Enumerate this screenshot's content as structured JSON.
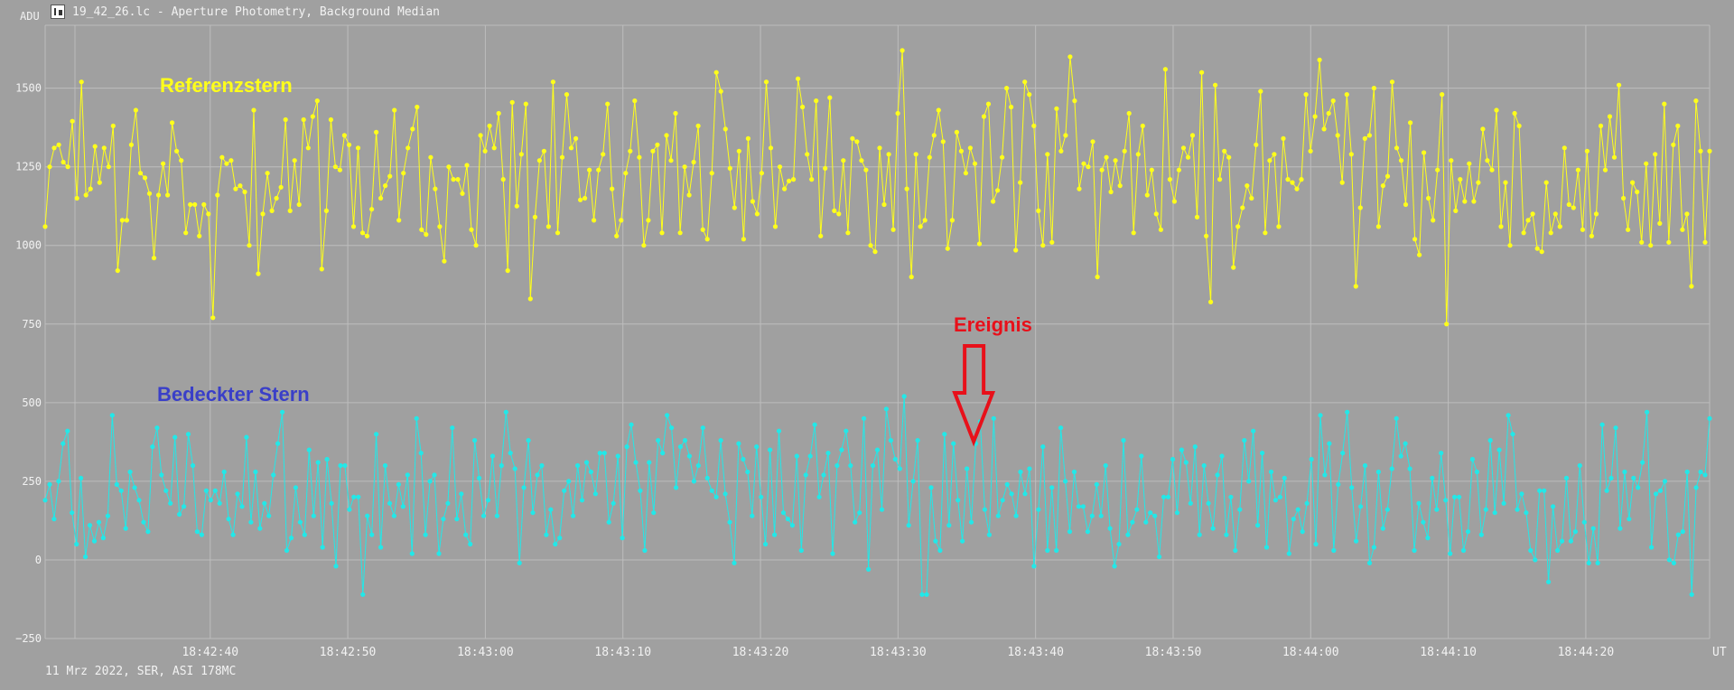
{
  "window": {
    "title": "19_42_26.lc - Aperture Photometry, Background Median",
    "icon": "chart-app-icon"
  },
  "footer": {
    "text": "11 Mrz 2022, SER, ASI 178MC"
  },
  "colors": {
    "background": "#a0a0a0",
    "grid": "#bdbdbd",
    "axis_text": "#f2f2f2",
    "reference_series": "#ffff1a",
    "occulted_series": "#22e8e8",
    "reference_label": "#ffff1a",
    "occulted_label": "#3a3fc8",
    "event": "#e8101a"
  },
  "chart_data": {
    "type": "line",
    "title": "",
    "ylabel": "ADU",
    "xlabel": "UT",
    "ylim": [
      -250,
      1700
    ],
    "yticks": [
      -250,
      0,
      250,
      500,
      750,
      1000,
      1250,
      1500
    ],
    "ytick_labels": [
      "−250",
      "0",
      "250",
      "500",
      "750",
      "1000",
      "1250",
      "1500"
    ],
    "xlim_seconds_from_start": [
      0,
      121
    ],
    "x_start": "18:42:28",
    "xticks": [
      "18:42:40",
      "18:42:50",
      "18:43:00",
      "18:43:10",
      "18:43:20",
      "18:43:30",
      "18:43:40",
      "18:43:50",
      "18:44:00",
      "18:44:10",
      "18:44:20"
    ],
    "grid": true,
    "annotations": [
      {
        "text": "Referenzstern",
        "series": "reference"
      },
      {
        "text": "Bedeckter Stern",
        "series": "occulted"
      },
      {
        "text": "Ereignis",
        "time": "18:43:35.5",
        "type": "down-arrow"
      }
    ],
    "series": [
      {
        "name": "Referenzstern",
        "key": "reference",
        "time_range": [
          "18:42:28",
          "18:44:29"
        ],
        "values": [
          1060,
          1250,
          1310,
          1320,
          1265,
          1250,
          1395,
          1150,
          1520,
          1160,
          1180,
          1315,
          1200,
          1310,
          1250,
          1380,
          920,
          1080,
          1080,
          1320,
          1430,
          1230,
          1215,
          1165,
          960,
          1160,
          1260,
          1160,
          1390,
          1300,
          1270,
          1040,
          1130,
          1130,
          1030,
          1130,
          1100,
          770,
          1160,
          1280,
          1260,
          1270,
          1180,
          1190,
          1170,
          1000,
          1430,
          910,
          1100,
          1230,
          1110,
          1150,
          1185,
          1400,
          1110,
          1270,
          1130,
          1400,
          1310,
          1410,
          1460,
          925,
          1110,
          1400,
          1250,
          1240,
          1350,
          1320,
          1060,
          1310,
          1040,
          1030,
          1115,
          1360,
          1150,
          1190,
          1220,
          1430,
          1080,
          1230,
          1310,
          1370,
          1440,
          1050,
          1035,
          1280,
          1180,
          1060,
          950,
          1250,
          1210,
          1210,
          1165,
          1255,
          1050,
          1000,
          1350,
          1300,
          1380,
          1310,
          1420,
          1210,
          920,
          1455,
          1125,
          1290,
          1450,
          830,
          1090,
          1270,
          1300,
          1060,
          1520,
          1040,
          1280,
          1480,
          1310,
          1340,
          1145,
          1150,
          1240,
          1080,
          1240,
          1290,
          1450,
          1180,
          1030,
          1080,
          1230,
          1300,
          1460,
          1280,
          1000,
          1080,
          1300,
          1320,
          1040,
          1350,
          1270,
          1420,
          1040,
          1250,
          1160,
          1265,
          1380,
          1050,
          1020,
          1230,
          1550,
          1490,
          1370,
          1245,
          1120,
          1300,
          1020,
          1340,
          1140,
          1100,
          1230,
          1520,
          1310,
          1060,
          1250,
          1180,
          1205,
          1210,
          1530,
          1440,
          1290,
          1210,
          1460,
          1030,
          1245,
          1470,
          1110,
          1100,
          1270,
          1040,
          1340,
          1330,
          1270,
          1240,
          1000,
          980,
          1310,
          1130,
          1290,
          1050,
          1420,
          1620,
          1180,
          900,
          1290,
          1060,
          1080,
          1280,
          1350,
          1430,
          1330,
          990,
          1080,
          1360,
          1300,
          1230,
          1310,
          1260,
          1005,
          1410,
          1450,
          1140,
          1175,
          1280,
          1500,
          1440,
          985,
          1200,
          1520,
          1480,
          1380,
          1110,
          1000,
          1290,
          1010,
          1435,
          1300,
          1350,
          1600,
          1460,
          1180,
          1260,
          1250,
          1330,
          900,
          1240,
          1280,
          1170,
          1270,
          1190,
          1300,
          1420,
          1040,
          1290,
          1380,
          1160,
          1240,
          1100,
          1050,
          1560,
          1210,
          1140,
          1240,
          1310,
          1280,
          1350,
          1090,
          1550,
          1030,
          820,
          1510,
          1210,
          1300,
          1280,
          930,
          1060,
          1120,
          1190,
          1150,
          1320,
          1490,
          1040,
          1270,
          1290,
          1060,
          1340,
          1210,
          1200,
          1180,
          1210,
          1480,
          1300,
          1410,
          1590,
          1370,
          1420,
          1460,
          1350,
          1200,
          1480,
          1290,
          870,
          1120,
          1340,
          1350,
          1500,
          1060,
          1190,
          1220,
          1520,
          1310,
          1270,
          1130,
          1390,
          1020,
          970,
          1295,
          1150,
          1080,
          1240,
          1480,
          750,
          1270,
          1110,
          1210,
          1140,
          1260,
          1140,
          1200,
          1370,
          1270,
          1240,
          1430,
          1060,
          1200,
          1000,
          1420,
          1380,
          1040,
          1080,
          1100,
          990,
          980,
          1200,
          1040,
          1100,
          1060,
          1310,
          1130,
          1120,
          1240,
          1050,
          1300,
          1030,
          1100,
          1380,
          1240,
          1410,
          1280,
          1510,
          1150,
          1050,
          1200,
          1170,
          1010,
          1260,
          1000,
          1290,
          1070,
          1450,
          1010,
          1320,
          1380,
          1050,
          1100,
          870,
          1460,
          1300,
          1010,
          1300
        ],
        "color": "#ffff1a"
      },
      {
        "name": "Bedeckter Stern",
        "key": "occulted",
        "time_range": [
          "18:42:28",
          "18:44:29"
        ],
        "values": [
          190,
          240,
          130,
          250,
          370,
          410,
          150,
          50,
          260,
          10,
          110,
          60,
          120,
          70,
          140,
          460,
          240,
          220,
          100,
          280,
          230,
          190,
          120,
          90,
          360,
          420,
          270,
          220,
          180,
          390,
          145,
          170,
          400,
          300,
          90,
          80,
          220,
          190,
          220,
          180,
          280,
          130,
          80,
          210,
          170,
          390,
          120,
          280,
          100,
          180,
          140,
          270,
          370,
          470,
          30,
          70,
          230,
          120,
          80,
          350,
          140,
          310,
          40,
          320,
          180,
          -20,
          300,
          300,
          160,
          200,
          200,
          -110,
          140,
          80,
          400,
          40,
          300,
          180,
          140,
          240,
          170,
          270,
          20,
          450,
          340,
          80,
          250,
          270,
          20,
          130,
          180,
          420,
          130,
          210,
          80,
          50,
          380,
          260,
          140,
          190,
          330,
          140,
          300,
          470,
          340,
          290,
          -10,
          230,
          380,
          150,
          270,
          300,
          80,
          160,
          50,
          70,
          220,
          250,
          140,
          300,
          190,
          310,
          280,
          210,
          340,
          340,
          120,
          180,
          330,
          70,
          360,
          430,
          310,
          220,
          30,
          310,
          150,
          380,
          340,
          460,
          420,
          230,
          360,
          380,
          330,
          250,
          300,
          420,
          260,
          220,
          200,
          380,
          210,
          120,
          -10,
          370,
          320,
          280,
          140,
          360,
          200,
          50,
          350,
          80,
          410,
          150,
          130,
          110,
          330,
          30,
          270,
          330,
          430,
          200,
          270,
          340,
          20,
          300,
          350,
          410,
          300,
          120,
          150,
          450,
          -30,
          300,
          350,
          160,
          480,
          380,
          320,
          290,
          520,
          110,
          250,
          380,
          -110,
          -110,
          230,
          60,
          30,
          400,
          110,
          370,
          190,
          60,
          290,
          120,
          370,
          440,
          160,
          80,
          450,
          140,
          190,
          240,
          210,
          140,
          280,
          210,
          290,
          -20,
          160,
          360,
          30,
          230,
          30,
          420,
          250,
          90,
          280,
          170,
          170,
          90,
          140,
          240,
          140,
          300,
          100,
          -20,
          50,
          380,
          80,
          120,
          160,
          330,
          120,
          150,
          140,
          10,
          200,
          200,
          320,
          150,
          350,
          310,
          180,
          360,
          80,
          300,
          180,
          100,
          270,
          330,
          80,
          200,
          30,
          160,
          380,
          250,
          410,
          110,
          340,
          40,
          280,
          190,
          200,
          260,
          20,
          130,
          160,
          90,
          180,
          320,
          50,
          460,
          270,
          370,
          30,
          240,
          340,
          470,
          230,
          60,
          170,
          300,
          -10,
          40,
          280,
          100,
          160,
          290,
          450,
          330,
          370,
          290,
          30,
          180,
          120,
          70,
          260,
          160,
          340,
          190,
          20,
          200,
          200,
          30,
          90,
          320,
          280,
          80,
          160,
          380,
          150,
          350,
          180,
          460,
          400,
          160,
          210,
          150,
          30,
          0,
          220,
          220,
          -70,
          170,
          30,
          60,
          260,
          60,
          90,
          300,
          120,
          -10,
          100,
          -10,
          430,
          220,
          260,
          420,
          100,
          280,
          130,
          260,
          230,
          310,
          470,
          40,
          210,
          220,
          250,
          0,
          -10,
          80,
          90,
          280,
          -110,
          230,
          280,
          270,
          450
        ],
        "color": "#22e8e8"
      }
    ]
  }
}
